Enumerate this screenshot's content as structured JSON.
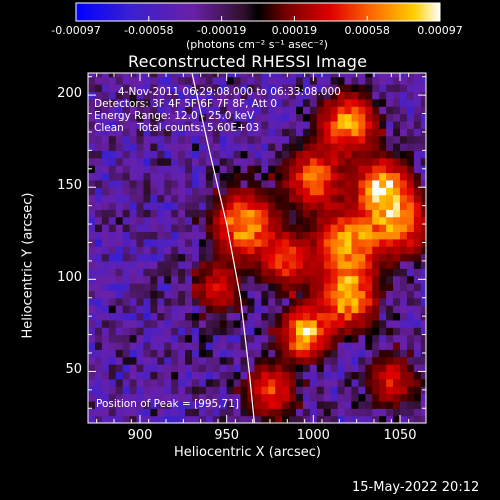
{
  "chart_data": {
    "type": "heatmap",
    "title": "Reconstructed RHESSI Image",
    "xlabel": "Heliocentric X (arcsec)",
    "ylabel": "Heliocentric Y (arcsec)",
    "xlim": [
      870,
      1065
    ],
    "ylim": [
      22,
      212
    ],
    "x_ticks": [
      900,
      950,
      1000,
      1050
    ],
    "y_ticks": [
      50,
      100,
      150,
      200
    ],
    "colorbar": {
      "ticks": [
        "-0.00097",
        "-0.00058",
        "-0.00019",
        "0.00019",
        "0.00058",
        "0.00097"
      ],
      "unit_label": "(photons cm⁻² s⁻¹ asec⁻²)",
      "range": [
        -0.00097,
        0.00097
      ]
    },
    "annotations": {
      "time_range": "4-Nov-2011 06:29:08.000 to 06:33:08.000",
      "detectors": "Detectors: 3F 4F 5F 6F 7F 8F, Att 0",
      "energy": "Energy Range: 12.0 - 25.0 keV",
      "method": "Clean    Total counts: 5.60E+03",
      "peak": "Position of Peak = [995,71]"
    },
    "peak_position": [
      995,
      71
    ],
    "limb_curve": [
      [
        930,
        212
      ],
      [
        940,
        170
      ],
      [
        950,
        130
      ],
      [
        958,
        90
      ],
      [
        963,
        50
      ],
      [
        966,
        22
      ]
    ],
    "hotspots": [
      {
        "x": 1040,
        "y": 150,
        "amplitude": 0.00095,
        "sigma": 10
      },
      {
        "x": 1050,
        "y": 130,
        "amplitude": 0.0007,
        "sigma": 12
      },
      {
        "x": 1020,
        "y": 120,
        "amplitude": 0.00085,
        "sigma": 12
      },
      {
        "x": 1020,
        "y": 90,
        "amplitude": 0.0009,
        "sigma": 11
      },
      {
        "x": 995,
        "y": 71,
        "amplitude": 0.00097,
        "sigma": 9
      },
      {
        "x": 960,
        "y": 130,
        "amplitude": 0.00085,
        "sigma": 12
      },
      {
        "x": 985,
        "y": 110,
        "amplitude": 0.0006,
        "sigma": 10
      },
      {
        "x": 1020,
        "y": 185,
        "amplitude": 0.0008,
        "sigma": 11
      },
      {
        "x": 1000,
        "y": 155,
        "amplitude": 0.0007,
        "sigma": 11
      },
      {
        "x": 975,
        "y": 40,
        "amplitude": 0.0006,
        "sigma": 10
      },
      {
        "x": 1045,
        "y": 45,
        "amplitude": 0.0005,
        "sigma": 10
      },
      {
        "x": 945,
        "y": 95,
        "amplitude": 0.0005,
        "sigma": 9
      }
    ],
    "background": {
      "cool_min": -0.00097,
      "cool_level": -0.00035
    }
  },
  "footer": {
    "date": "15-May-2022 20:12"
  }
}
